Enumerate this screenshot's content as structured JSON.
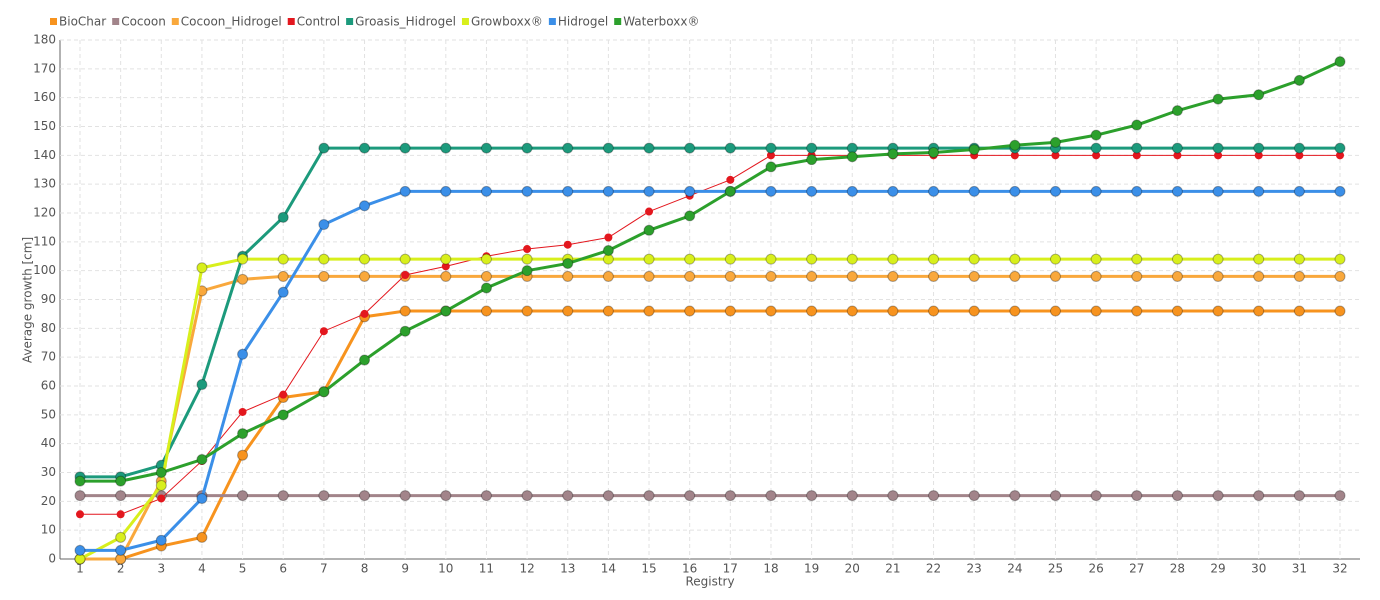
{
  "chart_data": {
    "type": "line",
    "x_label": "Registry",
    "y_label": "Average growth [cm]",
    "categories": [
      "1",
      "2",
      "3",
      "4",
      "5",
      "6",
      "7",
      "8",
      "9",
      "10",
      "11",
      "12",
      "13",
      "14",
      "15",
      "16",
      "17",
      "18",
      "19",
      "20",
      "21",
      "22",
      "23",
      "24",
      "25",
      "26",
      "27",
      "28",
      "29",
      "30",
      "31",
      "32"
    ],
    "ylim": [
      0,
      180
    ],
    "yticks": [
      0,
      10,
      20,
      30,
      40,
      50,
      60,
      70,
      80,
      90,
      100,
      110,
      120,
      130,
      140,
      150,
      160,
      170,
      180
    ],
    "grid": true,
    "legend": "top-left",
    "series": [
      {
        "name": "BioChar",
        "color": "#f7931e",
        "values": [
          0,
          0,
          4.5,
          7.5,
          36,
          56,
          58,
          84,
          86,
          86,
          86,
          86,
          86,
          86,
          86,
          86,
          86,
          86,
          86,
          86,
          86,
          86,
          86,
          86,
          86,
          86,
          86,
          86,
          86,
          86,
          86,
          86
        ]
      },
      {
        "name": "Cocoon",
        "color": "#a2848a",
        "values": [
          22,
          22,
          22,
          22,
          22,
          22,
          22,
          22,
          22,
          22,
          22,
          22,
          22,
          22,
          22,
          22,
          22,
          22,
          22,
          22,
          22,
          22,
          22,
          22,
          22,
          22,
          22,
          22,
          22,
          22,
          22,
          22
        ]
      },
      {
        "name": "Cocoon_Hidrogel",
        "color": "#f9a83c",
        "values": [
          0,
          0,
          27,
          93,
          97,
          98,
          98,
          98,
          98,
          98,
          98,
          98,
          98,
          98,
          98,
          98,
          98,
          98,
          98,
          98,
          98,
          98,
          98,
          98,
          98,
          98,
          98,
          98,
          98,
          98,
          98,
          98
        ]
      },
      {
        "name": "Control",
        "color": "#e3171e",
        "values": [
          15.5,
          15.5,
          21,
          34,
          51,
          57,
          79,
          85,
          98.5,
          101.5,
          105,
          107.5,
          109,
          111.5,
          120.5,
          126,
          131.5,
          140,
          140,
          140,
          140,
          140,
          140,
          140,
          140,
          140,
          140,
          140,
          140,
          140,
          140,
          140
        ]
      },
      {
        "name": "Groasis_Hidrogel",
        "color": "#1c9a7c",
        "values": [
          28.5,
          28.5,
          32.5,
          60.5,
          105,
          118.5,
          142.5,
          142.5,
          142.5,
          142.5,
          142.5,
          142.5,
          142.5,
          142.5,
          142.5,
          142.5,
          142.5,
          142.5,
          142.5,
          142.5,
          142.5,
          142.5,
          142.5,
          142.5,
          142.5,
          142.5,
          142.5,
          142.5,
          142.5,
          142.5,
          142.5,
          142.5
        ]
      },
      {
        "name": "Growboxx®",
        "color": "#d8ef1c",
        "values": [
          0,
          7.5,
          25.5,
          101,
          104,
          104,
          104,
          104,
          104,
          104,
          104,
          104,
          104,
          104,
          104,
          104,
          104,
          104,
          104,
          104,
          104,
          104,
          104,
          104,
          104,
          104,
          104,
          104,
          104,
          104,
          104,
          104
        ]
      },
      {
        "name": "Hidrogel",
        "color": "#3b8fe8",
        "values": [
          3,
          3,
          6.5,
          21,
          71,
          92.5,
          116,
          122.5,
          127.5,
          127.5,
          127.5,
          127.5,
          127.5,
          127.5,
          127.5,
          127.5,
          127.5,
          127.5,
          127.5,
          127.5,
          127.5,
          127.5,
          127.5,
          127.5,
          127.5,
          127.5,
          127.5,
          127.5,
          127.5,
          127.5,
          127.5,
          127.5
        ]
      },
      {
        "name": "Waterboxx®",
        "color": "#2ca02c",
        "values": [
          27,
          27,
          30,
          34.5,
          43.5,
          50,
          58,
          69,
          79,
          86,
          94,
          100,
          102.5,
          107,
          114,
          119,
          127.5,
          136,
          138.5,
          139.5,
          140.5,
          141,
          142,
          143.5,
          144.5,
          147,
          150.5,
          155.5,
          159.5,
          161,
          166,
          172.5
        ]
      }
    ]
  }
}
